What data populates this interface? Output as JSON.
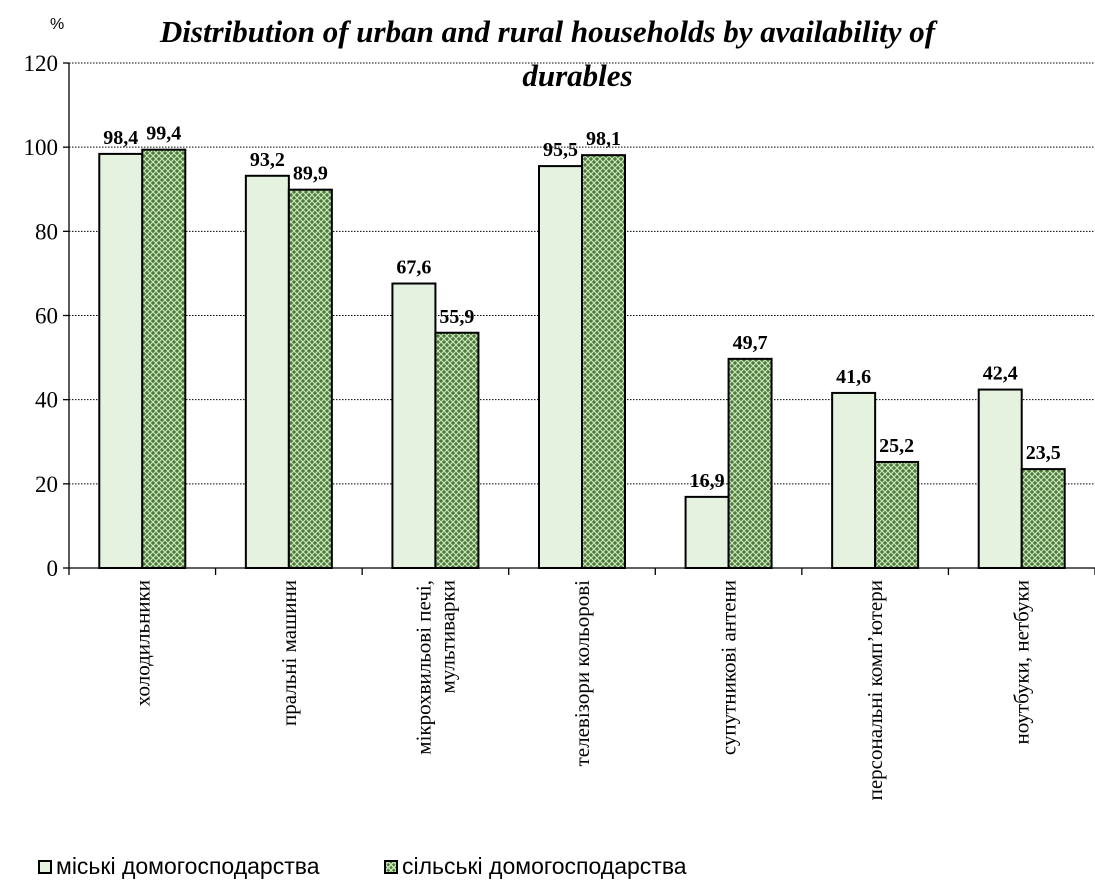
{
  "chart_data": {
    "type": "bar",
    "title_lines": [
      "Distribution of urban and rural households by availability of",
      "durables"
    ],
    "ylabel": "%",
    "ylim": [
      0,
      120
    ],
    "yticks": [
      0,
      20,
      40,
      60,
      80,
      100,
      120
    ],
    "categories": [
      [
        "холодильники"
      ],
      [
        "пральні машини"
      ],
      [
        "мікрохвильові печі,",
        "мультиварки"
      ],
      [
        "телевізори кольорові"
      ],
      [
        "супутникові антени"
      ],
      [
        "персональні комп’ютери"
      ],
      [
        "ноутбуки,  нетбуки"
      ]
    ],
    "series": [
      {
        "name": "міські домогосподарства",
        "values": [
          98.4,
          93.2,
          67.6,
          95.5,
          16.9,
          41.6,
          42.4
        ],
        "labels": [
          "98,4",
          "93,2",
          "67,6",
          "95,5",
          "16,9",
          "41,6",
          "42,4"
        ]
      },
      {
        "name": "сільські домогосподарства",
        "values": [
          99.4,
          89.9,
          55.9,
          98.1,
          49.7,
          25.2,
          23.5
        ],
        "labels": [
          "99,4",
          "89,9",
          "55,9",
          "98,1",
          "49,7",
          "25,2",
          "23,5"
        ]
      }
    ],
    "grid": true,
    "legend_position": "bottom-left",
    "colors": {
      "urban_fill": "#e5f2df",
      "rural_base": "#4d7a3c",
      "rural_pattern": "#c9e6b8",
      "axis": "#000000"
    }
  }
}
